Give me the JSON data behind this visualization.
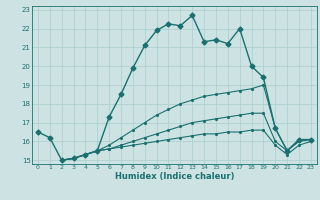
{
  "title": "",
  "xlabel": "Humidex (Indice chaleur)",
  "ylabel": "",
  "xlim": [
    -0.5,
    23.5
  ],
  "ylim": [
    14.8,
    23.2
  ],
  "xticks": [
    0,
    1,
    2,
    3,
    4,
    5,
    6,
    7,
    8,
    9,
    10,
    11,
    12,
    13,
    14,
    15,
    16,
    17,
    18,
    19,
    20,
    21,
    22,
    23
  ],
  "yticks": [
    15,
    16,
    17,
    18,
    19,
    20,
    21,
    22,
    23
  ],
  "background_color": "#cde3e3",
  "line_color": "#1a7070",
  "grid_color": "#b0d0d0",
  "lines": [
    {
      "x": [
        0,
        1,
        2,
        3,
        4,
        5,
        6,
        7,
        8,
        9,
        10,
        11,
        12,
        13,
        14,
        15,
        16,
        17,
        18,
        19,
        20,
        21,
        22,
        23
      ],
      "y": [
        16.5,
        16.2,
        15.0,
        15.1,
        15.3,
        15.5,
        17.3,
        18.5,
        19.9,
        21.1,
        21.9,
        22.25,
        22.15,
        22.7,
        21.3,
        21.4,
        21.2,
        22.0,
        20.0,
        19.4,
        16.7,
        15.5,
        16.1,
        16.1
      ]
    },
    {
      "x": [
        2,
        3,
        4,
        5,
        6,
        7,
        8,
        9,
        10,
        11,
        12,
        13,
        14,
        15,
        16,
        17,
        18,
        19,
        20,
        21,
        22,
        23
      ],
      "y": [
        15.0,
        15.1,
        15.3,
        15.5,
        15.8,
        16.2,
        16.6,
        17.0,
        17.4,
        17.7,
        18.0,
        18.2,
        18.4,
        18.5,
        18.6,
        18.7,
        18.8,
        19.0,
        16.7,
        15.5,
        16.1,
        16.1
      ]
    },
    {
      "x": [
        2,
        3,
        4,
        5,
        6,
        7,
        8,
        9,
        10,
        11,
        12,
        13,
        14,
        15,
        16,
        17,
        18,
        19,
        20,
        21,
        22,
        23
      ],
      "y": [
        15.0,
        15.1,
        15.3,
        15.5,
        15.6,
        15.8,
        16.0,
        16.2,
        16.4,
        16.6,
        16.8,
        17.0,
        17.1,
        17.2,
        17.3,
        17.4,
        17.5,
        17.5,
        16.0,
        15.5,
        16.0,
        16.1
      ]
    },
    {
      "x": [
        2,
        3,
        4,
        5,
        6,
        7,
        8,
        9,
        10,
        11,
        12,
        13,
        14,
        15,
        16,
        17,
        18,
        19,
        20,
        21,
        22,
        23
      ],
      "y": [
        15.0,
        15.1,
        15.3,
        15.5,
        15.6,
        15.7,
        15.8,
        15.9,
        16.0,
        16.1,
        16.2,
        16.3,
        16.4,
        16.4,
        16.5,
        16.5,
        16.6,
        16.6,
        15.8,
        15.3,
        15.8,
        16.0
      ]
    }
  ]
}
